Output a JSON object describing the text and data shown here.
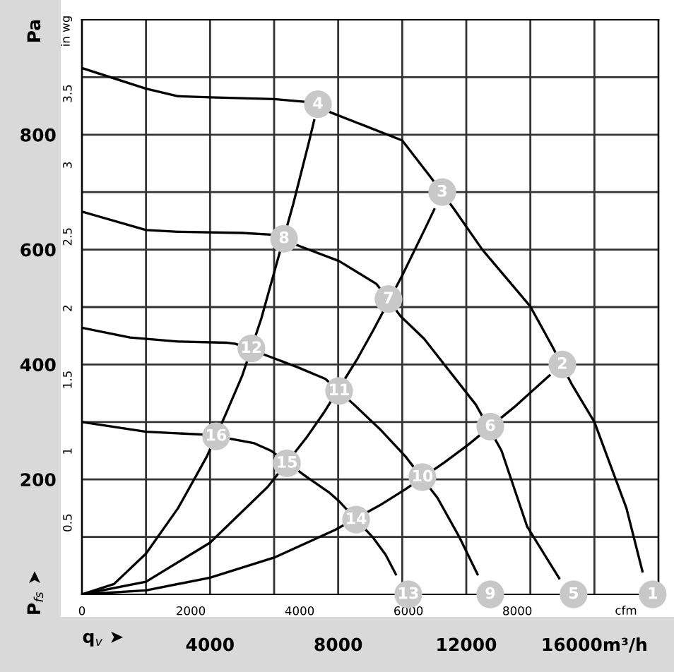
{
  "chart_data": {
    "type": "line",
    "xlabel": "q$_{v}$ ➤",
    "ylabel": "P$_{fs}$ ➤",
    "y2label": "in wg",
    "x2label": "cfm",
    "annotations": [
      "Pa",
      {
        "text": "1",
        "x": 17820,
        "y": 0
      },
      {
        "text": "2",
        "x": 15000,
        "y": 400
      },
      {
        "text": "3",
        "x": 11250,
        "y": 700
      },
      {
        "text": "4",
        "x": 7368,
        "y": 853
      },
      {
        "text": "5",
        "x": 15350,
        "y": 0
      },
      {
        "text": "6",
        "x": 12750,
        "y": 292
      },
      {
        "text": "7",
        "x": 9570,
        "y": 514
      },
      {
        "text": "8",
        "x": 6310,
        "y": 619
      },
      {
        "text": "9",
        "x": 12750,
        "y": 0
      },
      {
        "text": "10",
        "x": 10630,
        "y": 204
      },
      {
        "text": "11",
        "x": 8030,
        "y": 354
      },
      {
        "text": "12",
        "x": 5290,
        "y": 428
      },
      {
        "text": "13",
        "x": 10190,
        "y": 0
      },
      {
        "text": "14",
        "x": 8560,
        "y": 130
      },
      {
        "text": "15",
        "x": 6400,
        "y": 228
      },
      {
        "text": "16",
        "x": 4190,
        "y": 275
      }
    ],
    "xlim": [
      0,
      18000
    ],
    "ylim": [
      0,
      1000
    ],
    "xticks": [
      {
        "value": 2000,
        "label": null
      },
      4000,
      {
        "value": 6000,
        "label": null
      },
      8000,
      {
        "value": 10000,
        "label": null
      },
      12000,
      {
        "value": 14000,
        "label": null
      },
      {
        "value": 16000,
        "label": "16000m³/h"
      }
    ],
    "yticks": [
      {
        "value": 100,
        "label": null
      },
      200,
      {
        "value": 300,
        "label": null
      },
      400,
      {
        "value": 500,
        "label": null
      },
      600,
      {
        "value": 700,
        "label": null
      },
      800,
      {
        "value": 900,
        "label": null
      }
    ],
    "y2lim": [
      0,
      4.016
    ],
    "y2ticks": [
      0.5,
      1,
      1.5,
      2,
      2.5,
      3,
      3.5
    ],
    "x2lim": [
      0,
      10594
    ],
    "x2ticks": [
      0,
      2000,
      4000,
      6000,
      8000
    ],
    "grid": true,
    "series": [
      {
        "color": "#000000",
        "x": [
          0,
          2000,
          3000,
          4000,
          6000,
          7000,
          7800,
          10000,
          10900,
          11600,
          12500,
          14000,
          14700,
          15300,
          16000,
          17000,
          17500
        ],
        "values": [
          916,
          880,
          867,
          865,
          862,
          857,
          838,
          790,
          725,
          672,
          600,
          501,
          430,
          365,
          300,
          150,
          40
        ]
      },
      {
        "color": "#000000",
        "x": [
          0,
          2000,
          3000,
          5000,
          5900,
          6800,
          8030,
          9200,
          9950,
          10680,
          12300,
          13100,
          13900,
          14900
        ],
        "values": [
          666,
          634,
          631,
          629,
          626,
          606,
          580,
          540,
          484,
          445,
          330,
          250,
          118,
          28
        ]
      },
      {
        "color": "#000000",
        "x": [
          0,
          1500,
          3000,
          4500,
          4800,
          5800,
          6700,
          7600,
          8500,
          9350,
          10100,
          11100,
          11780,
          12350
        ],
        "values": [
          464,
          447,
          440,
          438,
          436,
          415,
          396,
          375,
          330,
          285,
          240,
          168,
          100,
          35
        ]
      },
      {
        "color": "#000000",
        "x": [
          0,
          2000,
          3800,
          4700,
          5380,
          5900,
          7000,
          7700,
          8030,
          9100,
          9480,
          9800
        ],
        "values": [
          300,
          283,
          278,
          270,
          263,
          250,
          205,
          178,
          162,
          98,
          69,
          35
        ]
      },
      {
        "color": "#000000",
        "x": [
          0,
          1000,
          2000,
          3000,
          3900,
          4500,
          5000,
          5600,
          6000,
          6600,
          7100,
          7250
        ],
        "values": [
          0,
          18,
          71,
          150,
          240,
          315,
          380,
          480,
          560,
          680,
          790,
          825
        ]
      },
      {
        "color": "#000000",
        "x": [
          0,
          2000,
          4000,
          5800,
          7000,
          7550,
          8600,
          9100,
          10000,
          10700,
          11000
        ],
        "values": [
          0,
          22,
          90,
          187,
          272,
          316,
          410,
          460,
          555,
          635,
          670
        ]
      },
      {
        "color": "#000000",
        "x": [
          0,
          2000,
          4000,
          6000,
          7900,
          9300,
          10100,
          11300,
          12050,
          13500,
          14600
        ],
        "values": [
          0,
          7,
          29,
          64,
          112,
          155,
          183,
          229,
          260,
          326,
          381
        ]
      },
      {
        "type": "scatter",
        "marker": "circle",
        "color": "#c8c8c8",
        "x": [
          17820,
          15000,
          11250,
          7368,
          15350,
          12750,
          9570,
          6310,
          12750,
          10630,
          8030,
          5290,
          10190,
          8560,
          6400,
          4190
        ],
        "values": [
          0,
          400,
          700,
          853,
          0,
          292,
          514,
          619,
          0,
          204,
          354,
          428,
          0,
          130,
          228,
          275
        ]
      }
    ]
  }
}
